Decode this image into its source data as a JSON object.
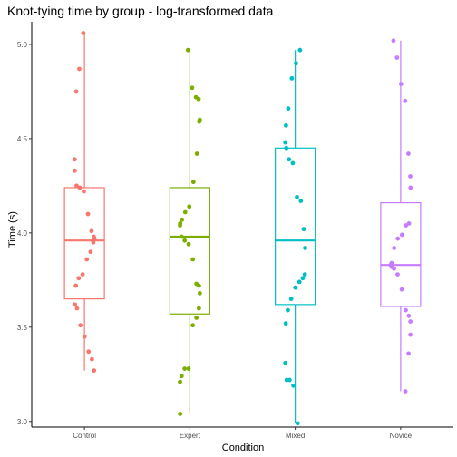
{
  "chart_data": {
    "type": "boxplot",
    "title": "Knot-tying time by group - log-transformed data",
    "xlabel": "Condition",
    "ylabel": "Time (s)",
    "ylim": [
      2.97,
      5.12
    ],
    "yticks": [
      "3.0",
      "3.5",
      "4.0",
      "4.5",
      "5.0"
    ],
    "grid": false,
    "legend": "none",
    "categories": [
      "Control",
      "Expert",
      "Mixed",
      "Novice"
    ],
    "colors": [
      "#f8766d",
      "#7cae00",
      "#00bfc4",
      "#c77cff"
    ],
    "boxes": [
      {
        "category": "Control",
        "whisker_low": 3.27,
        "q1": 3.65,
        "median": 3.96,
        "q3": 4.24,
        "whisker_high": 5.06
      },
      {
        "category": "Expert",
        "whisker_low": 3.04,
        "q1": 3.57,
        "median": 3.98,
        "q3": 4.24,
        "whisker_high": 4.97
      },
      {
        "category": "Mixed",
        "whisker_low": 2.99,
        "q1": 3.62,
        "median": 3.96,
        "q3": 4.45,
        "whisker_high": 4.97
      },
      {
        "category": "Novice",
        "whisker_low": 3.16,
        "q1": 3.61,
        "median": 3.83,
        "q3": 4.16,
        "whisker_high": 5.02
      }
    ],
    "points": [
      {
        "category": "Control",
        "values": [
          5.06,
          4.87,
          4.75,
          4.39,
          4.33,
          4.25,
          4.24,
          4.22,
          4.1,
          4.01,
          3.98,
          3.97,
          3.95,
          3.9,
          3.86,
          3.78,
          3.76,
          3.72,
          3.62,
          3.62,
          3.6,
          3.51,
          3.45,
          3.37,
          3.33,
          3.27
        ]
      },
      {
        "category": "Expert",
        "values": [
          4.97,
          4.77,
          4.72,
          4.71,
          4.6,
          4.59,
          4.42,
          4.27,
          4.14,
          4.11,
          4.07,
          4.05,
          4.04,
          3.98,
          3.96,
          3.94,
          3.86,
          3.73,
          3.72,
          3.68,
          3.6,
          3.55,
          3.51,
          3.28,
          3.28,
          3.24,
          3.21,
          3.04
        ]
      },
      {
        "category": "Mixed",
        "values": [
          4.97,
          4.9,
          4.82,
          4.66,
          4.57,
          4.48,
          4.45,
          4.39,
          4.37,
          4.19,
          4.17,
          4.02,
          3.92,
          3.78,
          3.76,
          3.74,
          3.71,
          3.65,
          3.59,
          3.52,
          3.31,
          3.22,
          3.22,
          3.19,
          2.99
        ]
      },
      {
        "category": "Novice",
        "values": [
          5.02,
          4.93,
          4.79,
          4.7,
          4.42,
          4.3,
          4.24,
          4.05,
          4.04,
          3.99,
          3.97,
          3.92,
          3.84,
          3.83,
          3.82,
          3.81,
          3.78,
          3.7,
          3.59,
          3.56,
          3.53,
          3.46,
          3.36,
          3.16
        ]
      }
    ]
  }
}
